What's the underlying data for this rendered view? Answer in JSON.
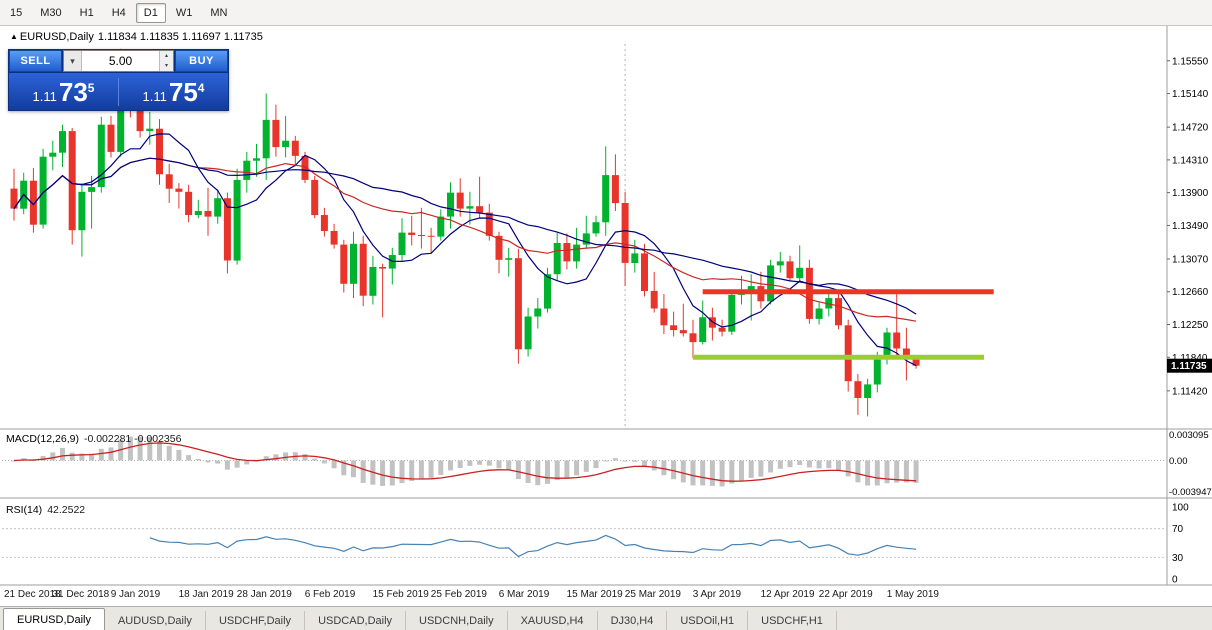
{
  "toolbar": {
    "timeframes": [
      {
        "label": "15",
        "active": false
      },
      {
        "label": "M30",
        "active": false
      },
      {
        "label": "H1",
        "active": false
      },
      {
        "label": "H4",
        "active": false
      },
      {
        "label": "D1",
        "active": true
      },
      {
        "label": "W1",
        "active": false
      },
      {
        "label": "MN",
        "active": false
      }
    ]
  },
  "chart_header": {
    "symbol": "EURUSD,Daily",
    "ohlc": "1.11834 1.11835 1.11697 1.11735"
  },
  "trade_panel": {
    "sell_label": "SELL",
    "buy_label": "BUY",
    "volume": "5.00",
    "sell_price": {
      "prefix": "1.11",
      "big": "73",
      "sup": "5"
    },
    "buy_price": {
      "prefix": "1.11",
      "big": "75",
      "sup": "4"
    }
  },
  "price_tag": "1.11735",
  "macd": {
    "label": "MACD(12,26,9)",
    "values": "-0.002281 -0.002356",
    "axis_max": "0.003095",
    "axis_mid": "0.00",
    "axis_min": "-0.003947"
  },
  "rsi": {
    "label": "RSI(14)",
    "value": "42.2522",
    "axis": [
      "100",
      "70",
      "30",
      "0"
    ],
    "levels": [
      70,
      30
    ]
  },
  "tabs": [
    {
      "label": "EURUSD,Daily",
      "active": true
    },
    {
      "label": "AUDUSD,Daily",
      "active": false
    },
    {
      "label": "USDCHF,Daily",
      "active": false
    },
    {
      "label": "USDCAD,Daily",
      "active": false
    },
    {
      "label": "USDCNH,Daily",
      "active": false
    },
    {
      "label": "XAUUSD,H4",
      "active": false
    },
    {
      "label": "DJ30,H4",
      "active": false
    },
    {
      "label": "USDOil,H1",
      "active": false
    },
    {
      "label": "USDCHF,H1",
      "active": false
    }
  ],
  "chart_data": {
    "type": "candlestick",
    "symbol": "EURUSD",
    "timeframe": "Daily",
    "ylim": [
      1.1098,
      1.1576
    ],
    "current_price": 1.11735,
    "price_axis": [
      "1.15550",
      "1.15140",
      "1.14720",
      "1.14310",
      "1.13900",
      "1.13490",
      "1.13070",
      "1.12660",
      "1.12250",
      "1.11840",
      "1.11420"
    ],
    "date_labels": [
      [
        0,
        "21 Dec 2018"
      ],
      [
        5,
        "31 Dec 2018"
      ],
      [
        11,
        "9 Jan 2019"
      ],
      [
        18,
        "18 Jan 2019"
      ],
      [
        24,
        "28 Jan 2019"
      ],
      [
        31,
        "6 Feb 2019"
      ],
      [
        38,
        "15 Feb 2019"
      ],
      [
        44,
        "25 Feb 2019"
      ],
      [
        51,
        "6 Mar 2019"
      ],
      [
        58,
        "15 Mar 2019"
      ],
      [
        64,
        "25 Mar 2019"
      ],
      [
        71,
        "3 Apr 2019"
      ],
      [
        78,
        "12 Apr 2019"
      ],
      [
        84,
        "22 Apr 2019"
      ],
      [
        91,
        "1 May 2019"
      ]
    ],
    "colors": {
      "bull": "#00b22d",
      "bear": "#e8352b",
      "macd_bar": "#c2c2c2",
      "macd_signal": "#cc2020",
      "rsi": "#4682b4"
    },
    "moving_averages": [
      {
        "period": 8,
        "color": "#00007c"
      },
      {
        "period": 20,
        "color": "#c82a22"
      },
      {
        "period": 32,
        "color": "#00007c"
      }
    ],
    "hlines": [
      {
        "price": 1.1266,
        "from": 71,
        "to": 101,
        "color": "#ee3524",
        "width": 5,
        "name": "resistance-line"
      },
      {
        "price": 1.1184,
        "from": 70,
        "to": 100,
        "color": "#9acd32",
        "width": 5,
        "name": "support-line"
      }
    ],
    "vline": {
      "index": 63,
      "color": "#b4b4b4"
    },
    "ohlc": [
      [
        1.1395,
        1.142,
        1.1355,
        1.137
      ],
      [
        1.137,
        1.1415,
        1.1363,
        1.1405
      ],
      [
        1.1405,
        1.1421,
        1.134,
        1.135
      ],
      [
        1.135,
        1.1445,
        1.1345,
        1.1435
      ],
      [
        1.1435,
        1.1455,
        1.1418,
        1.144
      ],
      [
        1.144,
        1.1475,
        1.1422,
        1.1467
      ],
      [
        1.1467,
        1.1471,
        1.1325,
        1.1343
      ],
      [
        1.1343,
        1.1402,
        1.131,
        1.1391
      ],
      [
        1.1391,
        1.1411,
        1.1345,
        1.1397
      ],
      [
        1.1397,
        1.1485,
        1.139,
        1.1475
      ],
      [
        1.1475,
        1.1486,
        1.1434,
        1.1441
      ],
      [
        1.1441,
        1.157,
        1.1435,
        1.1545
      ],
      [
        1.1545,
        1.1556,
        1.1484,
        1.15
      ],
      [
        1.15,
        1.1541,
        1.1459,
        1.1467
      ],
      [
        1.1467,
        1.1491,
        1.145,
        1.147
      ],
      [
        1.147,
        1.1482,
        1.14,
        1.1413
      ],
      [
        1.1413,
        1.1426,
        1.1377,
        1.1395
      ],
      [
        1.1395,
        1.1402,
        1.137,
        1.1391
      ],
      [
        1.1391,
        1.14,
        1.1353,
        1.1362
      ],
      [
        1.1362,
        1.1381,
        1.1358,
        1.1367
      ],
      [
        1.1367,
        1.1396,
        1.1336,
        1.136
      ],
      [
        1.136,
        1.1394,
        1.1351,
        1.1383
      ],
      [
        1.1383,
        1.139,
        1.1289,
        1.1305
      ],
      [
        1.1305,
        1.142,
        1.13,
        1.1406
      ],
      [
        1.1406,
        1.1441,
        1.139,
        1.143
      ],
      [
        1.143,
        1.1451,
        1.141,
        1.1433
      ],
      [
        1.1433,
        1.1514,
        1.1406,
        1.1481
      ],
      [
        1.1481,
        1.15,
        1.1435,
        1.1447
      ],
      [
        1.1447,
        1.1486,
        1.1434,
        1.1455
      ],
      [
        1.1455,
        1.1461,
        1.1423,
        1.1436
      ],
      [
        1.1436,
        1.1441,
        1.1402,
        1.1406
      ],
      [
        1.1406,
        1.1411,
        1.1358,
        1.1362
      ],
      [
        1.1362,
        1.1371,
        1.1335,
        1.1342
      ],
      [
        1.1342,
        1.1351,
        1.132,
        1.1325
      ],
      [
        1.1325,
        1.1331,
        1.1265,
        1.1276
      ],
      [
        1.1276,
        1.1341,
        1.1258,
        1.1326
      ],
      [
        1.1326,
        1.1336,
        1.1248,
        1.1261
      ],
      [
        1.1261,
        1.1311,
        1.125,
        1.1297
      ],
      [
        1.1297,
        1.1301,
        1.1234,
        1.1295
      ],
      [
        1.1295,
        1.1321,
        1.1275,
        1.1312
      ],
      [
        1.1312,
        1.1358,
        1.1305,
        1.134
      ],
      [
        1.134,
        1.1361,
        1.1324,
        1.1337
      ],
      [
        1.1337,
        1.1371,
        1.132,
        1.1336
      ],
      [
        1.1336,
        1.1346,
        1.1315,
        1.1335
      ],
      [
        1.1335,
        1.1369,
        1.133,
        1.136
      ],
      [
        1.136,
        1.1403,
        1.1345,
        1.139
      ],
      [
        1.139,
        1.1408,
        1.136,
        1.137
      ],
      [
        1.137,
        1.1391,
        1.135,
        1.1373
      ],
      [
        1.1373,
        1.141,
        1.1358,
        1.1365
      ],
      [
        1.1365,
        1.1376,
        1.133,
        1.1336
      ],
      [
        1.1336,
        1.1341,
        1.1289,
        1.1306
      ],
      [
        1.1306,
        1.1321,
        1.1285,
        1.1308
      ],
      [
        1.1308,
        1.132,
        1.1176,
        1.1194
      ],
      [
        1.1194,
        1.1246,
        1.1185,
        1.1235
      ],
      [
        1.1235,
        1.1258,
        1.122,
        1.1245
      ],
      [
        1.1245,
        1.1296,
        1.124,
        1.1288
      ],
      [
        1.1288,
        1.134,
        1.128,
        1.1327
      ],
      [
        1.1327,
        1.1339,
        1.1294,
        1.1304
      ],
      [
        1.1304,
        1.1346,
        1.1295,
        1.1325
      ],
      [
        1.1325,
        1.1361,
        1.132,
        1.1339
      ],
      [
        1.1339,
        1.1361,
        1.1335,
        1.1353
      ],
      [
        1.1353,
        1.1448,
        1.1336,
        1.1412
      ],
      [
        1.1412,
        1.1438,
        1.1367,
        1.1377
      ],
      [
        1.1377,
        1.1391,
        1.1273,
        1.1302
      ],
      [
        1.1302,
        1.1331,
        1.129,
        1.1314
      ],
      [
        1.1314,
        1.1326,
        1.126,
        1.1267
      ],
      [
        1.1267,
        1.1291,
        1.124,
        1.1245
      ],
      [
        1.1245,
        1.1263,
        1.1213,
        1.1224
      ],
      [
        1.1224,
        1.1241,
        1.121,
        1.1218
      ],
      [
        1.1218,
        1.1251,
        1.121,
        1.1214
      ],
      [
        1.1214,
        1.1231,
        1.1183,
        1.1203
      ],
      [
        1.1203,
        1.1255,
        1.12,
        1.1234
      ],
      [
        1.1234,
        1.1246,
        1.1205,
        1.1221
      ],
      [
        1.1221,
        1.1231,
        1.121,
        1.1216
      ],
      [
        1.1216,
        1.1266,
        1.1212,
        1.1262
      ],
      [
        1.1262,
        1.1286,
        1.125,
        1.1264
      ],
      [
        1.1264,
        1.1288,
        1.123,
        1.1273
      ],
      [
        1.1273,
        1.1291,
        1.1245,
        1.1254
      ],
      [
        1.1254,
        1.1306,
        1.125,
        1.1299
      ],
      [
        1.1299,
        1.1316,
        1.129,
        1.1304
      ],
      [
        1.1304,
        1.1311,
        1.128,
        1.1283
      ],
      [
        1.1283,
        1.1324,
        1.128,
        1.1296
      ],
      [
        1.1296,
        1.1306,
        1.1226,
        1.1232
      ],
      [
        1.1232,
        1.1253,
        1.1225,
        1.1245
      ],
      [
        1.1245,
        1.1263,
        1.1235,
        1.1258
      ],
      [
        1.1258,
        1.1266,
        1.1219,
        1.1224
      ],
      [
        1.1224,
        1.1231,
        1.1141,
        1.1154
      ],
      [
        1.1154,
        1.1163,
        1.1112,
        1.1133
      ],
      [
        1.1133,
        1.1157,
        1.111,
        1.115
      ],
      [
        1.115,
        1.1191,
        1.114,
        1.1185
      ],
      [
        1.1185,
        1.1221,
        1.1175,
        1.1215
      ],
      [
        1.1215,
        1.1265,
        1.1187,
        1.1195
      ],
      [
        1.1195,
        1.1221,
        1.1155,
        1.1183
      ],
      [
        1.11834,
        1.11835,
        1.11697,
        1.11735
      ]
    ]
  }
}
